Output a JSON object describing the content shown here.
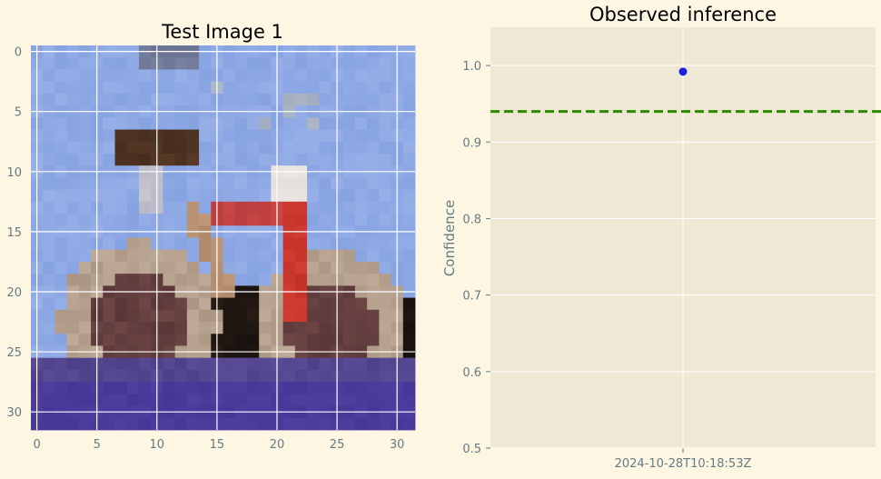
{
  "chart_data": [
    {
      "type": "image",
      "title": "Test Image 1",
      "xlabel": "",
      "ylabel": "",
      "x_ticks": [
        0,
        5,
        10,
        15,
        20,
        25,
        30
      ],
      "y_ticks": [
        0,
        5,
        10,
        15,
        20,
        25,
        30
      ],
      "xlim": [
        -0.5,
        31.5
      ],
      "ylim": [
        31.5,
        -0.5
      ],
      "grid": true,
      "image_size": [
        32,
        32
      ],
      "image_content": "pixelated photo of a bicycle against a blue sky, purple ground"
    },
    {
      "type": "scatter",
      "title": "Observed inference",
      "xlabel": "",
      "ylabel": "Confidence",
      "x": [
        "2024-10-28T10:18:53Z"
      ],
      "y": [
        0.992
      ],
      "ylim": [
        0.5,
        1.05
      ],
      "y_ticks": [
        0.5,
        0.6,
        0.7,
        0.8,
        0.9,
        1.0
      ],
      "y_tick_labels": [
        "0.5",
        "0.6",
        "0.7",
        "0.8",
        "0.9",
        "1.0"
      ],
      "x_tick_labels": [
        "2024-10-28T10:18:53Z"
      ],
      "threshold": 0.94,
      "threshold_style": "dashed",
      "grid": true
    }
  ],
  "colors": {
    "figure_bg": "#fdf6e3",
    "axes_bg": "#eee8d5",
    "grid": "#ffffff",
    "tick_text": "#657b83",
    "title_text": "#000000",
    "marker": "#1f1fe0",
    "threshold": "#2a8a00"
  }
}
